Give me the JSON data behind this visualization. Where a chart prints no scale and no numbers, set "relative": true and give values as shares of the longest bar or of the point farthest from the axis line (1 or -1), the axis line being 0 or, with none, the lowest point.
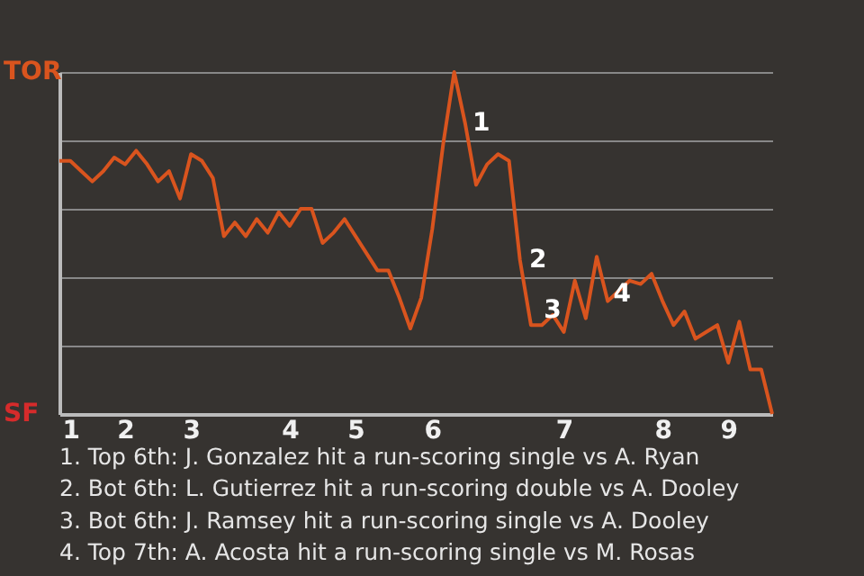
{
  "chart_data": {
    "type": "line",
    "relative": true,
    "categories": [
      null,
      "1",
      null,
      null,
      null,
      null,
      "2",
      null,
      null,
      null,
      null,
      null,
      "3",
      null,
      null,
      null,
      null,
      null,
      null,
      null,
      null,
      "4",
      null,
      null,
      null,
      null,
      null,
      "5",
      null,
      null,
      null,
      null,
      null,
      null,
      "6",
      null,
      null,
      null,
      null,
      null,
      null,
      null,
      null,
      null,
      null,
      null,
      "7",
      null,
      null,
      null,
      null,
      null,
      null,
      null,
      null,
      "8",
      null,
      null,
      null,
      null,
      null,
      "9",
      null,
      null,
      null,
      null
    ],
    "series": [
      {
        "color": "#d9541e",
        "values": [
          0.74,
          0.74,
          0.71,
          0.68,
          0.71,
          0.75,
          0.73,
          0.77,
          0.73,
          0.68,
          0.71,
          0.63,
          0.76,
          0.74,
          0.69,
          0.52,
          0.56,
          0.52,
          0.57,
          0.53,
          0.59,
          0.55,
          0.6,
          0.6,
          0.5,
          0.53,
          0.57,
          0.52,
          0.47,
          0.42,
          0.42,
          0.34,
          0.25,
          0.34,
          0.54,
          0.79,
          1.0,
          0.85,
          0.67,
          0.73,
          0.76,
          0.74,
          0.45,
          0.26,
          0.26,
          0.29,
          0.24,
          0.39,
          0.28,
          0.46,
          0.33,
          0.36,
          0.39,
          0.38,
          0.41,
          0.33,
          0.26,
          0.3,
          0.22,
          0.24,
          0.26,
          0.15,
          0.27,
          0.13,
          0.13,
          0.0
        ]
      }
    ],
    "grid": "y",
    "marker": "none",
    "line_style": "solid",
    "annotations": [
      "1",
      "2",
      "3",
      "4",
      "TOR",
      "SF",
      "1. Top 6th: J. Gonzalez hit a run-scoring single vs A. Ryan",
      "2. Bot 6th: L. Gutierrez hit a run-scoring double vs A. Dooley",
      "3. Bot 6th: J. Ramsey hit a run-scoring single vs A. Dooley",
      "4. Top 7th: A. Acosta hit a run-scoring single vs M. Rosas"
    ]
  }
}
